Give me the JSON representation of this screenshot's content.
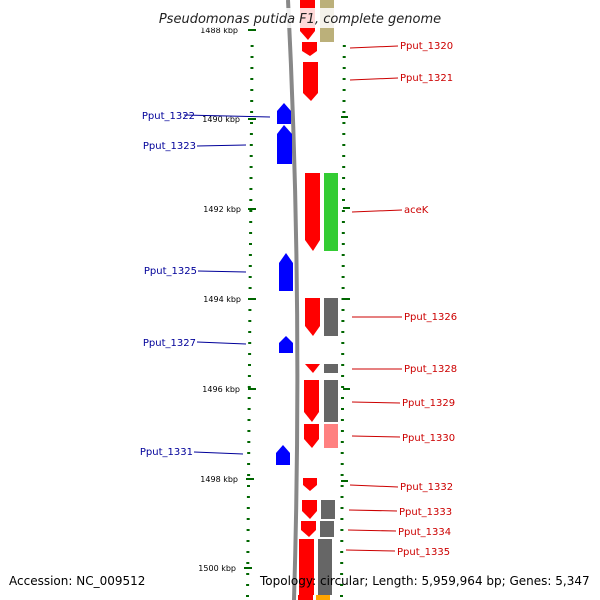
{
  "title": "Pseudomonas putida F1, complete genome",
  "footer": {
    "accession": "Accession: NC_009512",
    "topology": "Topology: circular; Length: 5,959,964 bp; Genes: 5,347"
  },
  "ruler": {
    "labels": [
      "1488 kbp",
      "1490 kbp",
      "1492 kbp",
      "1494 kbp",
      "1496 kbp",
      "1498 kbp",
      "1500 kbp"
    ]
  },
  "genes": {
    "left": [
      "Pput_1322",
      "Pput_1323",
      "Pput_1325",
      "Pput_1327",
      "Pput_1331"
    ],
    "right": [
      "Pput_1320",
      "Pput_1321",
      "aceK",
      "Pput_1326",
      "Pput_1328",
      "Pput_1329",
      "Pput_1330",
      "Pput_1332",
      "Pput_1333",
      "Pput_1334",
      "Pput_1335"
    ]
  },
  "colors": {
    "forward_strand": "#ff0000",
    "reverse_strand": "#0000ff",
    "ruler_ticks": "#006600",
    "label_right": "#cc0000",
    "label_left": "#000099",
    "backbone": "#888888",
    "cog_green": "#33cc33",
    "cog_gray": "#666666",
    "cog_olive": "#bbb07a",
    "cog_pink": "#ff8080",
    "cog_orange": "#ffa500"
  }
}
